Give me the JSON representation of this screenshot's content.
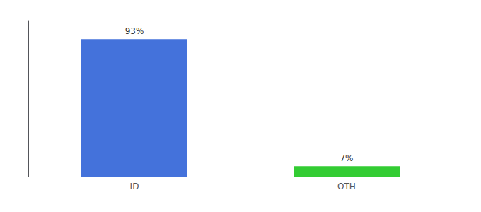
{
  "chart_data": {
    "type": "bar",
    "categories": [
      "ID",
      "OTH"
    ],
    "values": [
      93,
      7
    ],
    "colors": [
      "#4472DB",
      "#33CC33"
    ],
    "data_labels": true,
    "value_labels": [
      "93%",
      "7%"
    ],
    "ylim": [
      0,
      105
    ],
    "grid": false,
    "tick_labels": "x"
  }
}
